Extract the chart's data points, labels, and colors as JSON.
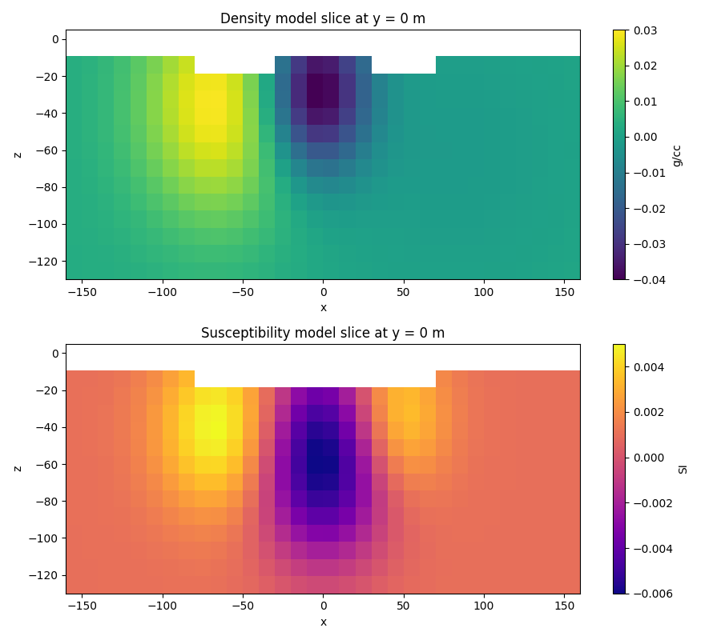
{
  "title1": "Density model slice at y = 0 m",
  "title2": "Susceptibility model slice at y = 0 m",
  "xlabel": "x",
  "ylabel": "z",
  "cbar_label1": "g/cc",
  "cbar_label2": "SI",
  "xlim": [
    -160,
    160
  ],
  "ylim_bottom": -130,
  "ylim_top": 5,
  "cmap1": "viridis",
  "cmap2": "plasma",
  "vmin1": -0.04,
  "vmax1": 0.03,
  "vmin2": -0.006,
  "vmax2": 0.005,
  "figsize": [
    9.0,
    8.0
  ],
  "dpi": 100
}
